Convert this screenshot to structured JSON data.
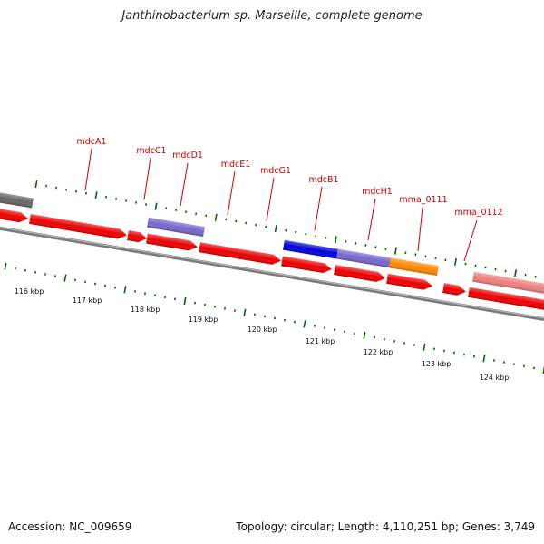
{
  "title": "Janthinobacterium sp. Marseille, complete genome",
  "footer": {
    "accession": "Accession: NC_009659",
    "summary": "Topology: circular; Length: 4,110,251 bp; Genes: 3,749"
  },
  "colors": {
    "cds_red": "#ee0000",
    "gene_purple": "#7766cc",
    "gene_blue": "#0000dd",
    "gene_orange": "#ff8800",
    "gene_pink": "#ee8080",
    "gene_gray": "#666666",
    "tick_green": "#006600",
    "label_red": "#cc0000"
  },
  "gene_labels": [
    "mdcA1",
    "mdcC1",
    "mdcD1",
    "mdcE1",
    "mdcG1",
    "mdcB1",
    "mdcH1",
    "mma_0111",
    "mma_0112"
  ],
  "kbp_labels": [
    "116 kbp",
    "117 kbp",
    "118 kbp",
    "119 kbp",
    "120 kbp",
    "121 kbp",
    "122 kbp",
    "123 kbp",
    "124 kbp"
  ]
}
